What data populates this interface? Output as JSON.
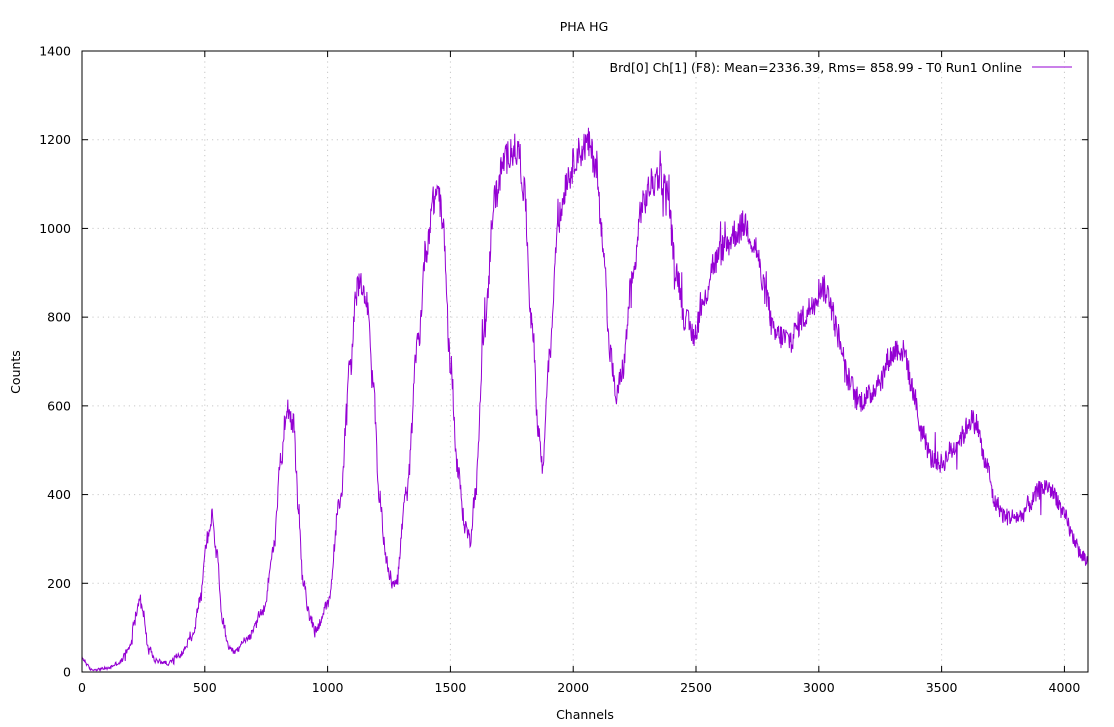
{
  "chart_data": {
    "type": "line",
    "title": "PHA HG",
    "xlabel": "Channels",
    "ylabel": "Counts",
    "xlim": [
      0,
      4096
    ],
    "ylim": [
      0,
      1400
    ],
    "x_ticks": [
      0,
      500,
      1000,
      1500,
      2000,
      2500,
      3000,
      3500,
      4000
    ],
    "y_ticks": [
      0,
      200,
      400,
      600,
      800,
      1000,
      1200,
      1400
    ],
    "grid": true,
    "legend_position": "top-right",
    "series": [
      {
        "name": "Brd[0] Ch[1] (F8): Mean=2336.39, Rms= 858.99 - T0 Run1 Online",
        "color": "#9400D3",
        "x": [
          0,
          40,
          100,
          150,
          190,
          220,
          235,
          250,
          270,
          300,
          350,
          400,
          450,
          480,
          510,
          530,
          550,
          570,
          600,
          620,
          680,
          740,
          780,
          810,
          835,
          860,
          880,
          900,
          930,
          950,
          1000,
          1050,
          1090,
          1120,
          1140,
          1160,
          1185,
          1210,
          1240,
          1260,
          1280,
          1320,
          1370,
          1400,
          1430,
          1450,
          1470,
          1500,
          1530,
          1560,
          1580,
          1600,
          1640,
          1680,
          1720,
          1750,
          1780,
          1800,
          1830,
          1860,
          1875,
          1900,
          1940,
          1980,
          2020,
          2060,
          2090,
          2120,
          2150,
          2175,
          2200,
          2240,
          2280,
          2320,
          2350,
          2380,
          2420,
          2460,
          2490,
          2530,
          2570,
          2620,
          2660,
          2700,
          2740,
          2780,
          2820,
          2880,
          2940,
          2990,
          3010,
          3040,
          3080,
          3120,
          3160,
          3200,
          3250,
          3290,
          3320,
          3350,
          3380,
          3420,
          3460,
          3500,
          3540,
          3580,
          3620,
          3640,
          3680,
          3720,
          3760,
          3820,
          3860,
          3900,
          3930,
          3960,
          4000,
          4040,
          4070,
          4096
        ],
        "y": [
          30,
          5,
          8,
          20,
          50,
          130,
          165,
          130,
          55,
          25,
          20,
          40,
          80,
          160,
          300,
          350,
          260,
          120,
          50,
          45,
          80,
          140,
          280,
          480,
          600,
          560,
          380,
          200,
          120,
          95,
          150,
          380,
          680,
          860,
          880,
          830,
          650,
          400,
          250,
          200,
          210,
          400,
          750,
          950,
          1060,
          1090,
          1000,
          700,
          450,
          330,
          300,
          400,
          780,
          1070,
          1150,
          1180,
          1170,
          1080,
          800,
          540,
          460,
          700,
          1020,
          1120,
          1170,
          1190,
          1150,
          980,
          720,
          620,
          680,
          880,
          1050,
          1100,
          1120,
          1090,
          900,
          790,
          760,
          830,
          920,
          960,
          990,
          1010,
          960,
          860,
          760,
          750,
          800,
          850,
          870,
          850,
          760,
          660,
          610,
          620,
          660,
          710,
          730,
          720,
          640,
          540,
          480,
          470,
          500,
          530,
          570,
          560,
          470,
          380,
          350,
          350,
          380,
          410,
          420,
          400,
          350,
          300,
          260,
          250
        ]
      }
    ]
  }
}
